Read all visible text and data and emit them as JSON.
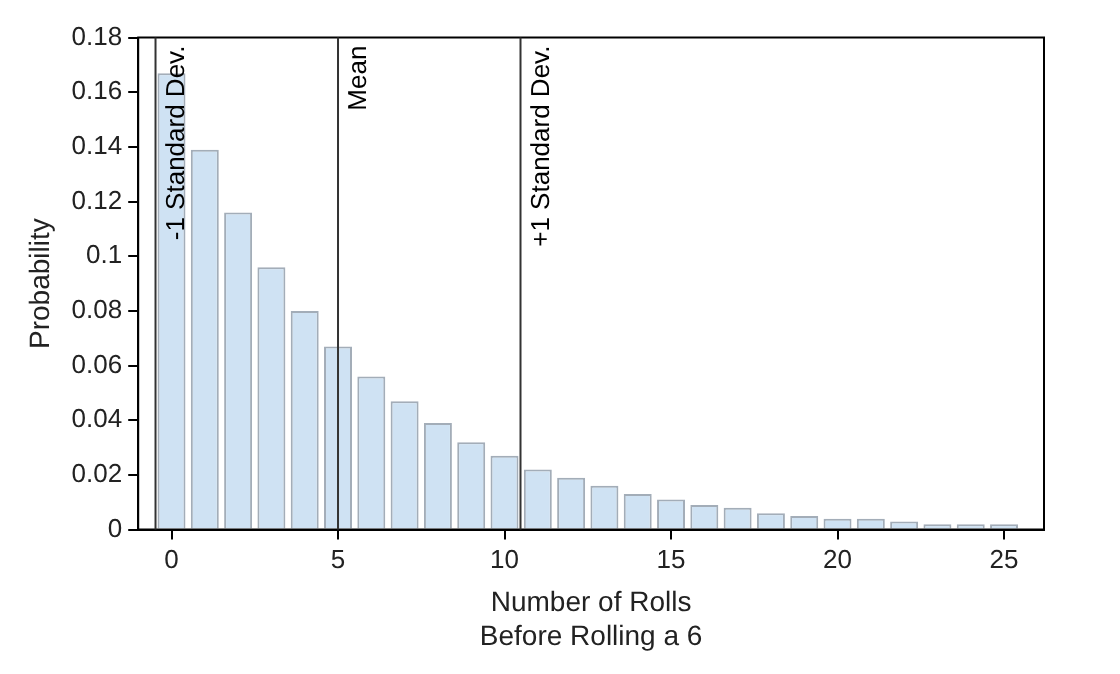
{
  "chart_data": {
    "type": "bar",
    "xlabel": "Number of Rolls\nBefore Rolling a 6",
    "ylabel": "Probability",
    "x": [
      0,
      1,
      2,
      3,
      4,
      5,
      6,
      7,
      8,
      9,
      10,
      11,
      12,
      13,
      14,
      15,
      16,
      17,
      18,
      19,
      20,
      21,
      22,
      23,
      24,
      25
    ],
    "values": [
      0.167,
      0.139,
      0.116,
      0.096,
      0.08,
      0.067,
      0.056,
      0.047,
      0.039,
      0.032,
      0.027,
      0.022,
      0.019,
      0.016,
      0.013,
      0.011,
      0.009,
      0.008,
      0.006,
      0.005,
      0.004,
      0.004,
      0.003,
      0.002,
      0.002,
      0.002
    ],
    "color": "#cfe2f3",
    "xlim": [
      -1,
      26.2
    ],
    "xticks": [
      0,
      5,
      10,
      15,
      20,
      25
    ],
    "ylim": [
      0,
      0.18
    ],
    "yticks": [
      0,
      0.02,
      0.04,
      0.06,
      0.08,
      0.1,
      0.12,
      0.14,
      0.16,
      0.18
    ],
    "grid": false,
    "legend": false,
    "ref_lines": [
      {
        "axis": "x",
        "value": -0.48,
        "label": "-1 Standard Dev.",
        "color": "#333333"
      },
      {
        "axis": "x",
        "value": 5,
        "label": "Mean",
        "color": "#333333"
      },
      {
        "axis": "x",
        "value": 10.48,
        "label": "+1 Standard Dev.",
        "color": "#333333"
      }
    ]
  }
}
